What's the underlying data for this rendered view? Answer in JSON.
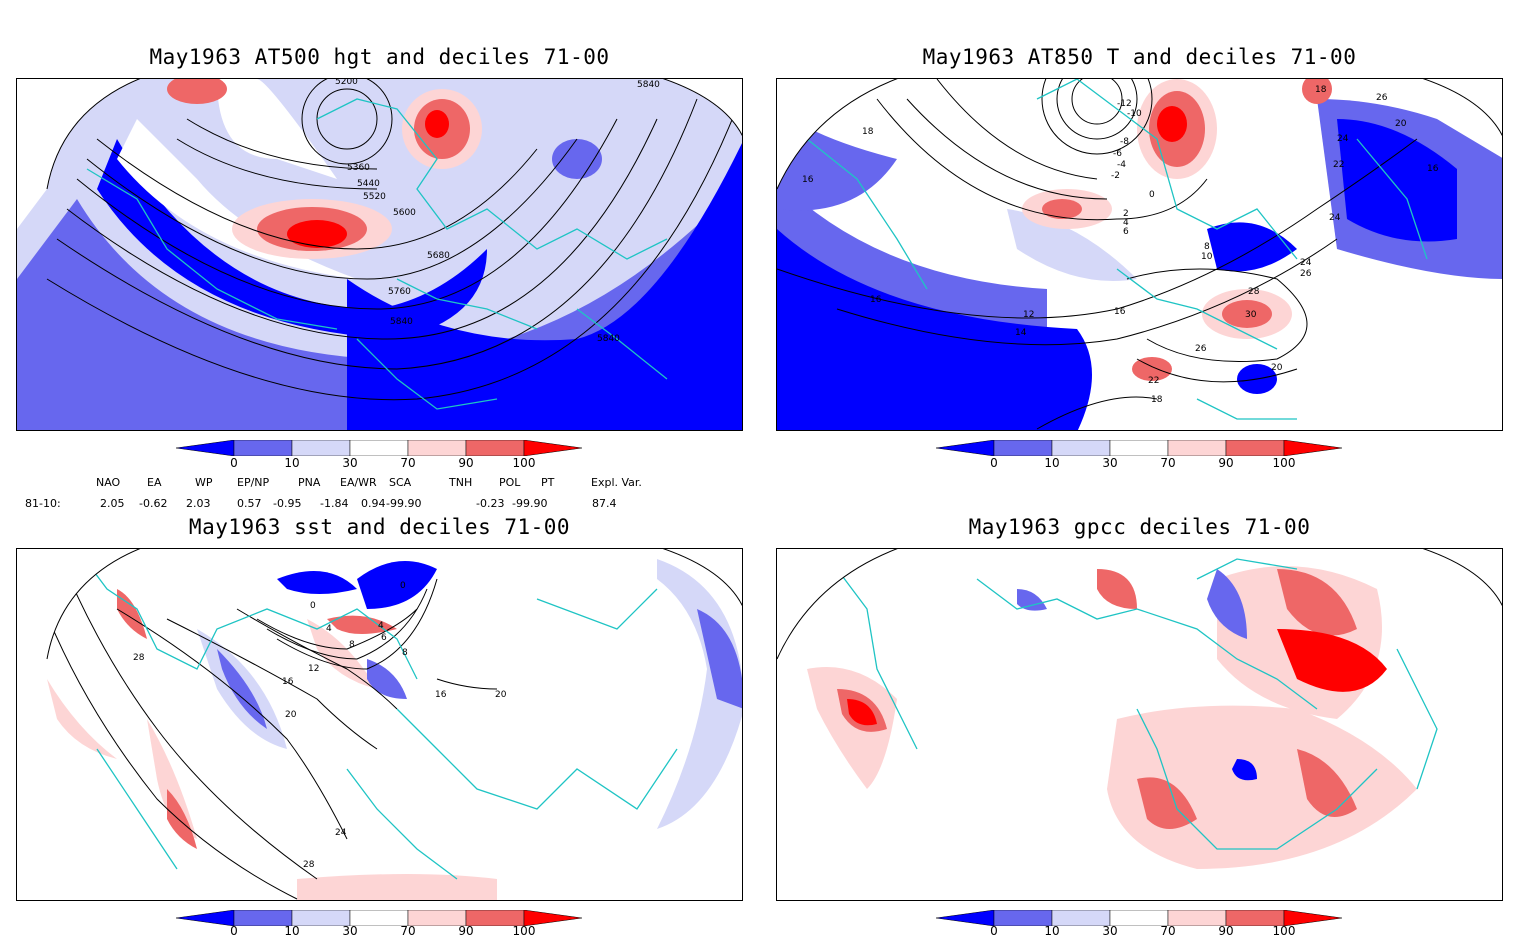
{
  "panels": [
    {
      "id": "p1",
      "title": "May1963 AT500 hgt and deciles 71-00",
      "contour_labels": [
        "5200",
        "5360",
        "5440",
        "5520",
        "5600",
        "5680",
        "5760",
        "5840",
        "5840",
        "5840"
      ]
    },
    {
      "id": "p2",
      "title": "May1963 AT850 T and deciles 71-00",
      "contour_labels": [
        "-12",
        "-10",
        "-8",
        "-6",
        "-4",
        "-2",
        "0",
        "2",
        "4",
        "6",
        "8",
        "10",
        "12",
        "14",
        "16",
        "16",
        "16",
        "18",
        "18",
        "18",
        "20",
        "20",
        "22",
        "22",
        "24",
        "24",
        "24",
        "26",
        "26",
        "26",
        "28",
        "30",
        "16"
      ]
    },
    {
      "id": "p3",
      "title": "May1963 sst and deciles 71-00",
      "contour_labels": [
        "0",
        "0",
        "4",
        "4",
        "6",
        "8",
        "8",
        "12",
        "16",
        "16",
        "20",
        "20",
        "24",
        "28",
        "28"
      ]
    },
    {
      "id": "p4",
      "title": "May1963 gpcc deciles 71-00",
      "contour_labels": []
    }
  ],
  "colorbar": {
    "ticks": [
      "0",
      "10",
      "30",
      "70",
      "90",
      "100"
    ],
    "colors": [
      "#0000ff",
      "#6767ee",
      "#d5d8f8",
      "#ffffff",
      "#fdd5d5",
      "#ee6767",
      "#ff0000"
    ]
  },
  "indices": {
    "headers": [
      "NAO",
      "EA",
      "WP",
      "EP/NP",
      "PNA",
      "EA/WR",
      "SCA",
      "TNH",
      "POL",
      "PT",
      "Expl. Var."
    ],
    "row_label": "81-10:",
    "values": [
      "2.05",
      "-0.62",
      "2.03",
      "0.57",
      "-0.95",
      "-1.84",
      "0.94",
      "-99.90",
      "-0.23",
      "-99.90",
      "87.4"
    ]
  }
}
